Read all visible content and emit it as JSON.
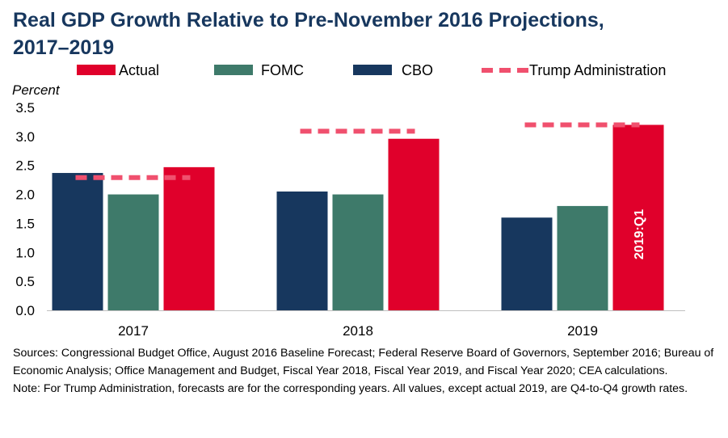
{
  "title_line1": "Real GDP Growth Relative to Pre-November 2016 Projections,",
  "title_line2": "2017–2019",
  "chart_data": {
    "type": "bar",
    "title": "Real GDP Growth Relative to Pre-November 2016 Projections, 2017–2019",
    "ylabel": "Percent",
    "xlabel": "",
    "ylim": [
      0,
      3.5
    ],
    "yticks": [
      "0.0",
      "0.5",
      "1.0",
      "1.5",
      "2.0",
      "2.5",
      "3.0",
      "3.5"
    ],
    "categories": [
      "2017",
      "2018",
      "2019"
    ],
    "series": [
      {
        "name": "CBO",
        "kind": "bar",
        "color": "#17375e",
        "values": [
          2.37,
          2.05,
          1.6
        ]
      },
      {
        "name": "FOMC",
        "kind": "bar",
        "color": "#3e7a6a",
        "values": [
          2.0,
          2.0,
          1.8
        ]
      },
      {
        "name": "Actual",
        "kind": "bar",
        "color": "#e0002b",
        "values": [
          2.47,
          2.96,
          3.2
        ]
      },
      {
        "name": "Trump Administration",
        "kind": "dashed-line",
        "color": "#f0506e",
        "values": [
          2.29,
          3.09,
          3.2
        ]
      }
    ],
    "legend_order": [
      "Actual",
      "FOMC",
      "CBO",
      "Trump Administration"
    ],
    "legend_position": "top",
    "annotation": {
      "text": "2019:Q1",
      "category": "2019",
      "series": "Actual"
    }
  },
  "notes": {
    "sources": "Sources: Congressional Budget Office, August 2016 Baseline Forecast; Federal Reserve Board of Governors, September 2016; Bureau of Economic Analysis; Office Management and Budget, Fiscal Year 2018, Fiscal Year 2019, and Fiscal Year 2020; CEA calculations.",
    "note": "Note: For Trump Administration, forecasts are for the corresponding years. All values, except actual 2019, are Q4-to-Q4 growth rates."
  }
}
